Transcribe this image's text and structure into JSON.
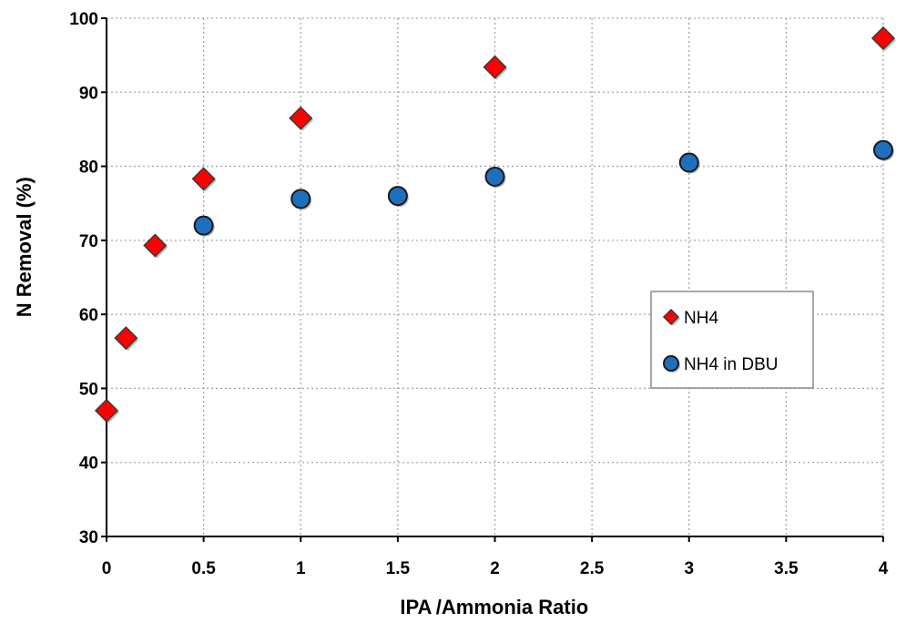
{
  "chart_data": {
    "type": "scatter",
    "title": "",
    "xlabel": "IPA /Ammonia Ratio ",
    "ylabel": "N Removal (%) ",
    "xlim": [
      0,
      4
    ],
    "ylim": [
      30,
      100
    ],
    "grid": true,
    "legend_position": "right-middle",
    "x_ticks": [
      {
        "value": 0,
        "label": "0"
      },
      {
        "value": 0.5,
        "label": "0.5"
      },
      {
        "value": 1,
        "label": "1"
      },
      {
        "value": 1.5,
        "label": "1.5"
      },
      {
        "value": 2,
        "label": "2"
      },
      {
        "value": 2.5,
        "label": "2.5"
      },
      {
        "value": 3,
        "label": "3"
      },
      {
        "value": 3.5,
        "label": "3.5"
      },
      {
        "value": 4,
        "label": "4"
      }
    ],
    "y_ticks": [
      {
        "value": 30,
        "label": "30"
      },
      {
        "value": 40,
        "label": "40"
      },
      {
        "value": 50,
        "label": "50"
      },
      {
        "value": 60,
        "label": "60"
      },
      {
        "value": 70,
        "label": "70"
      },
      {
        "value": 80,
        "label": "80"
      },
      {
        "value": 90,
        "label": "90"
      },
      {
        "value": 100,
        "label": "100"
      }
    ],
    "series": [
      {
        "name": "NH4",
        "marker": "diamond",
        "color": "#ff0000",
        "points": [
          {
            "x": 0,
            "y": 47
          },
          {
            "x": 0.1,
            "y": 56.8
          },
          {
            "x": 0.25,
            "y": 69.3
          },
          {
            "x": 0.5,
            "y": 78.3
          },
          {
            "x": 1,
            "y": 86.5
          },
          {
            "x": 2,
            "y": 93.4
          },
          {
            "x": 4,
            "y": 97.3
          }
        ]
      },
      {
        "name": "NH4 in DBU",
        "marker": "circle",
        "color": "#1f6fbf",
        "points": [
          {
            "x": 0.5,
            "y": 72
          },
          {
            "x": 1,
            "y": 75.6
          },
          {
            "x": 1.5,
            "y": 76
          },
          {
            "x": 2,
            "y": 78.6
          },
          {
            "x": 3,
            "y": 80.5
          },
          {
            "x": 4,
            "y": 82.2
          }
        ]
      }
    ]
  }
}
